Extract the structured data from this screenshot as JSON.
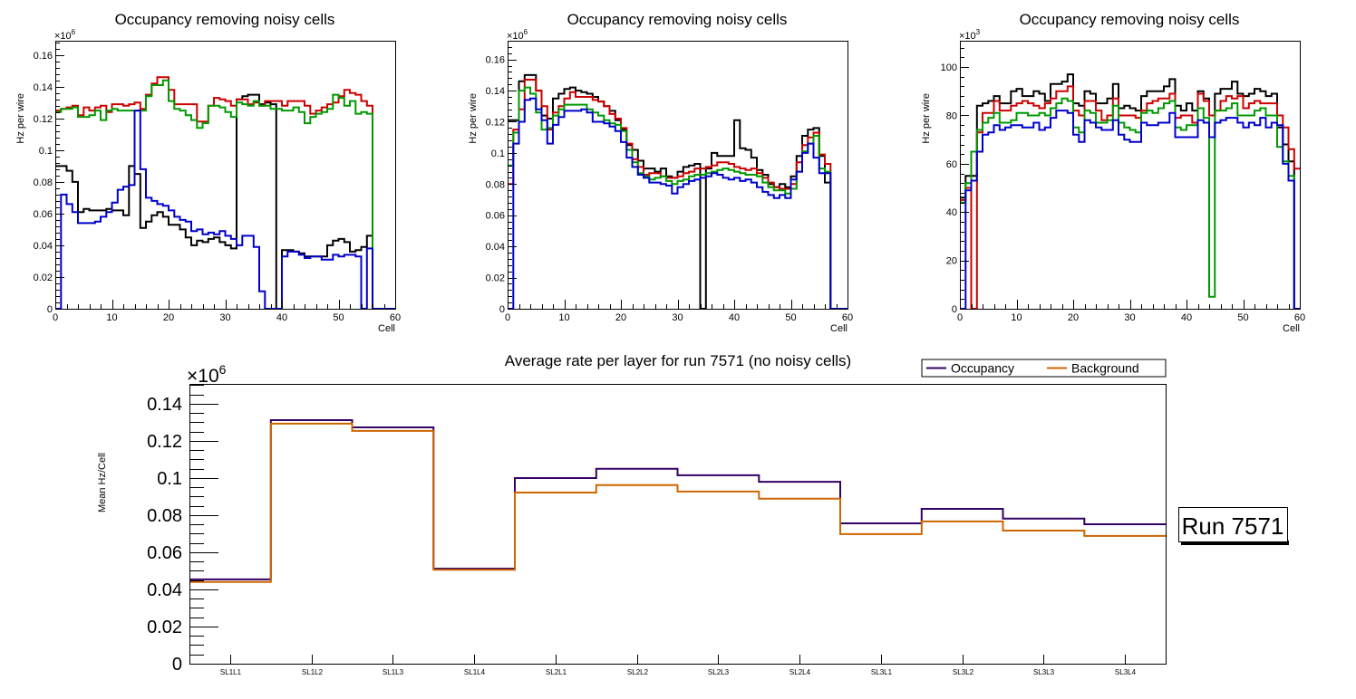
{
  "chart_data": [
    {
      "type": "line",
      "style": "step-histogram",
      "title": "Occupancy removing noisy cells",
      "xlabel": "Cell",
      "ylabel": "Hz per wire",
      "y_multiplier_label": "×10",
      "y_multiplier_exp": "6",
      "xlim": [
        0,
        60
      ],
      "ylim": [
        0,
        0.169
      ],
      "x_ticks": [
        "0",
        "10",
        "20",
        "30",
        "40",
        "50",
        "60"
      ],
      "y_ticks": [
        "0",
        "0.02",
        "0.04",
        "0.06",
        "0.08",
        "0.1",
        "0.12",
        "0.14",
        "0.16"
      ],
      "y_tick_values": [
        0,
        0.02,
        0.04,
        0.06,
        0.08,
        0.1,
        0.12,
        0.14,
        0.16
      ],
      "series": [
        {
          "name": "black",
          "color": "#000000",
          "values": [
            0.09,
            0.09,
            0.087,
            0.08,
            0.061,
            0.063,
            0.062,
            0.062,
            0.062,
            0.063,
            0.062,
            0.062,
            0.059,
            0.09,
            0.085,
            0.051,
            0.055,
            0.059,
            0.061,
            0.058,
            0.053,
            0.053,
            0.05,
            0.045,
            0.04,
            0.043,
            0.042,
            0.044,
            0.045,
            0.042,
            0.04,
            0.038,
            0.132,
            0.134,
            0.135,
            0.135,
            0.129,
            0.13,
            0.129,
            0,
            0.037,
            0.037,
            0.036,
            0.035,
            0.033,
            0.033,
            0.033,
            0.033,
            0.04,
            0.043,
            0.044,
            0.042,
            0.036,
            0.037,
            0.039,
            0.046,
            0,
            0,
            0,
            0
          ]
        },
        {
          "name": "red",
          "color": "#cc0000",
          "values": [
            0.125,
            0.126,
            0.127,
            0.128,
            0.122,
            0.127,
            0.125,
            0.127,
            0.128,
            0.124,
            0.129,
            0.129,
            0.128,
            0.129,
            0.13,
            0.126,
            0.135,
            0.142,
            0.146,
            0.146,
            0.138,
            0.129,
            0.129,
            0.129,
            0.129,
            0.118,
            0.118,
            0.128,
            0.133,
            0.132,
            0.131,
            0.128,
            0.132,
            0.132,
            0.129,
            0.13,
            0.128,
            0.131,
            0.131,
            0.131,
            0.128,
            0.131,
            0.131,
            0.131,
            0.128,
            0.123,
            0.125,
            0.127,
            0.129,
            0.13,
            0.134,
            0.138,
            0.136,
            0.135,
            0.131,
            0.128,
            0,
            0,
            0,
            0
          ]
        },
        {
          "name": "green",
          "color": "#009900",
          "values": [
            0.124,
            0.126,
            0.126,
            0.127,
            0.121,
            0.121,
            0.122,
            0.125,
            0.119,
            0.125,
            0.126,
            0.125,
            0.125,
            0.125,
            0.125,
            0.125,
            0.134,
            0.141,
            0.141,
            0.144,
            0.131,
            0.126,
            0.125,
            0.122,
            0.119,
            0.114,
            0.117,
            0.128,
            0.128,
            0.127,
            0.124,
            0.121,
            0.13,
            0.129,
            0.128,
            0.131,
            0.128,
            0.128,
            0.126,
            0.126,
            0.125,
            0.125,
            0.127,
            0.124,
            0.117,
            0.121,
            0.123,
            0.124,
            0.126,
            0.135,
            0.133,
            0.128,
            0.131,
            0.123,
            0.124,
            0.123,
            0,
            0,
            0,
            0
          ]
        },
        {
          "name": "blue",
          "color": "#0000cc",
          "values": [
            0,
            0.072,
            0.066,
            0.061,
            0.054,
            0.054,
            0.054,
            0.055,
            0.058,
            0.061,
            0.067,
            0.075,
            0.077,
            0.078,
            0.125,
            0.088,
            0.07,
            0.068,
            0.066,
            0.065,
            0.062,
            0.058,
            0.056,
            0.055,
            0.049,
            0.05,
            0.047,
            0.048,
            0.047,
            0.049,
            0.046,
            0.044,
            0.04,
            0.046,
            0.046,
            0.039,
            0.011,
            0,
            0,
            0,
            0.033,
            0.036,
            0.036,
            0.034,
            0.032,
            0.033,
            0.033,
            0.031,
            0.031,
            0.034,
            0.033,
            0.034,
            0.034,
            0.033,
            0,
            0.038,
            0,
            0,
            0,
            0
          ]
        }
      ]
    },
    {
      "type": "line",
      "style": "step-histogram",
      "title": "Occupancy removing noisy cells",
      "xlabel": "Cell",
      "ylabel": "Hz per wire",
      "y_multiplier_label": "×10",
      "y_multiplier_exp": "6",
      "xlim": [
        0,
        60
      ],
      "ylim": [
        0,
        0.172
      ],
      "x_ticks": [
        "0",
        "10",
        "20",
        "30",
        "40",
        "50",
        "60"
      ],
      "y_ticks": [
        "0",
        "0.02",
        "0.04",
        "0.06",
        "0.08",
        "0.1",
        "0.12",
        "0.14",
        "0.16"
      ],
      "y_tick_values": [
        0,
        0.02,
        0.04,
        0.06,
        0.08,
        0.1,
        0.12,
        0.14,
        0.16
      ],
      "series": [
        {
          "name": "black",
          "color": "#000000",
          "values": [
            0.121,
            0.121,
            0.146,
            0.15,
            0.15,
            0.14,
            0.124,
            0.122,
            0.135,
            0.138,
            0.141,
            0.142,
            0.14,
            0.139,
            0.138,
            0.136,
            0.133,
            0.13,
            0.127,
            0.121,
            0.115,
            0.105,
            0.102,
            0.095,
            0.09,
            0.09,
            0.088,
            0.09,
            0.085,
            0.084,
            0.088,
            0.091,
            0.092,
            0.093,
            0,
            0.09,
            0.1,
            0.098,
            0.098,
            0.098,
            0.121,
            0.103,
            0.102,
            0.097,
            0.089,
            0.086,
            0.08,
            0.078,
            0.08,
            0.078,
            0.085,
            0.098,
            0.111,
            0.115,
            0.116,
            0.098,
            0.081,
            0,
            0,
            0
          ]
        },
        {
          "name": "red",
          "color": "#cc0000",
          "values": [
            0.08,
            0.115,
            0.128,
            0.147,
            0.147,
            0.14,
            0.13,
            0.115,
            0.126,
            0.13,
            0.135,
            0.139,
            0.136,
            0.136,
            0.136,
            0.134,
            0.133,
            0.13,
            0.125,
            0.122,
            0.116,
            0.106,
            0.096,
            0.091,
            0.086,
            0.087,
            0.087,
            0.085,
            0.084,
            0.084,
            0.085,
            0.087,
            0.088,
            0.09,
            0.09,
            0.091,
            0.092,
            0.094,
            0.094,
            0.093,
            0.091,
            0.09,
            0.089,
            0.09,
            0.087,
            0.084,
            0.081,
            0.078,
            0.077,
            0.077,
            0.08,
            0.094,
            0.105,
            0.11,
            0.113,
            0.099,
            0.093,
            0,
            0,
            0
          ]
        },
        {
          "name": "green",
          "color": "#009900",
          "values": [
            0.092,
            0.113,
            0.14,
            0.142,
            0.138,
            0.126,
            0.115,
            0.116,
            0.124,
            0.128,
            0.131,
            0.131,
            0.131,
            0.131,
            0.128,
            0.126,
            0.124,
            0.121,
            0.119,
            0.118,
            0.114,
            0.102,
            0.094,
            0.087,
            0.085,
            0.083,
            0.084,
            0.085,
            0.082,
            0.08,
            0.082,
            0.083,
            0.085,
            0.086,
            0.086,
            0.087,
            0.088,
            0.089,
            0.09,
            0.089,
            0.088,
            0.087,
            0.086,
            0.086,
            0.085,
            0.081,
            0.078,
            0.076,
            0.076,
            0.074,
            0.077,
            0.088,
            0.101,
            0.106,
            0.111,
            0.09,
            0.088,
            0,
            0,
            0
          ]
        },
        {
          "name": "blue",
          "color": "#0000cc",
          "values": [
            0,
            0.106,
            0.12,
            0.134,
            0.135,
            0.128,
            0.121,
            0.106,
            0.118,
            0.123,
            0.127,
            0.127,
            0.127,
            0.128,
            0.126,
            0.12,
            0.12,
            0.119,
            0.117,
            0.114,
            0.107,
            0.097,
            0.091,
            0.086,
            0.084,
            0.081,
            0.081,
            0.08,
            0.079,
            0.074,
            0.078,
            0.08,
            0.082,
            0.083,
            0.084,
            0.085,
            0.087,
            0.086,
            0.084,
            0.083,
            0.084,
            0.082,
            0.083,
            0.081,
            0.078,
            0.075,
            0.073,
            0.071,
            0.073,
            0.071,
            0.083,
            0.088,
            0.1,
            0.106,
            0.097,
            0.087,
            0.087,
            0,
            0,
            0
          ]
        }
      ]
    },
    {
      "type": "line",
      "style": "step-histogram",
      "title": "Occupancy removing noisy cells",
      "xlabel": "Cell",
      "ylabel": "Hz per wire",
      "y_multiplier_label": "×10",
      "y_multiplier_exp": "3",
      "xlim": [
        0,
        60
      ],
      "ylim": [
        0,
        110.9
      ],
      "x_ticks": [
        "0",
        "10",
        "20",
        "30",
        "40",
        "50",
        "60"
      ],
      "y_ticks": [
        "0",
        "20",
        "40",
        "60",
        "80",
        "100"
      ],
      "y_tick_values": [
        0,
        20,
        40,
        60,
        80,
        100
      ],
      "series": [
        {
          "name": "black",
          "color": "#000000",
          "values": [
            46,
            55,
            55,
            84,
            85,
            86,
            88,
            85,
            85,
            90,
            91,
            88,
            88,
            90,
            89,
            86,
            93,
            93,
            94,
            97,
            85,
            84,
            90,
            89,
            85,
            85,
            87,
            93,
            83,
            84,
            83,
            82,
            88,
            90,
            90,
            90,
            92,
            95,
            84,
            82,
            85,
            82,
            90,
            87,
            80,
            89,
            91,
            91,
            94,
            89,
            88,
            89,
            91,
            90,
            88,
            89,
            75,
            68,
            61,
            0
          ]
        },
        {
          "name": "red",
          "color": "#cc0000",
          "values": [
            45,
            50,
            0,
            73,
            81,
            81,
            86,
            82,
            82,
            84,
            85,
            86,
            85,
            84,
            83,
            85,
            87,
            90,
            90,
            92,
            82,
            80,
            86,
            86,
            82,
            78,
            80,
            87,
            80,
            80,
            80,
            79,
            82,
            85,
            86,
            87,
            87,
            89,
            79,
            80,
            80,
            77,
            89,
            86,
            80,
            82,
            86,
            88,
            87,
            88,
            83,
            85,
            86,
            85,
            85,
            85,
            80,
            75,
            66,
            58
          ]
        },
        {
          "name": "green",
          "color": "#009900",
          "values": [
            44,
            52,
            65,
            74,
            77,
            79,
            81,
            77,
            77,
            78,
            81,
            81,
            80,
            80,
            81,
            80,
            83,
            85,
            87,
            86,
            75,
            73,
            82,
            81,
            77,
            77,
            78,
            84,
            77,
            75,
            74,
            73,
            81,
            82,
            81,
            83,
            85,
            86,
            75,
            74,
            76,
            76,
            83,
            79,
            5,
            82,
            82,
            83,
            85,
            80,
            80,
            80,
            82,
            83,
            80,
            80,
            67,
            61,
            55,
            0
          ]
        },
        {
          "name": "blue",
          "color": "#0000cc",
          "values": [
            0,
            49,
            53,
            65,
            72,
            73,
            76,
            74,
            75,
            76,
            76,
            75,
            75,
            77,
            74,
            75,
            79,
            82,
            82,
            81,
            72,
            69,
            78,
            77,
            75,
            74,
            74,
            78,
            72,
            70,
            69,
            69,
            77,
            76,
            76,
            77,
            77,
            81,
            71,
            71,
            71,
            71,
            78,
            77,
            71,
            77,
            78,
            79,
            79,
            77,
            75,
            77,
            76,
            79,
            75,
            77,
            76,
            60,
            53,
            0
          ]
        }
      ]
    },
    {
      "type": "line",
      "style": "step-histogram",
      "title": "Average rate per layer for run 7571 (no noisy cells)",
      "xlabel": "",
      "ylabel": "Mean Hz/Cell",
      "y_multiplier_label": "×10",
      "y_multiplier_exp": "6",
      "ylim": [
        0,
        0.1507
      ],
      "categories": [
        "SL1L1",
        "SL1L2",
        "SL1L3",
        "SL1L4",
        "SL2L1",
        "SL2L2",
        "SL2L3",
        "SL2L4",
        "SL3L1",
        "SL3L2",
        "SL3L3",
        "SL3L4"
      ],
      "y_ticks": [
        "0",
        "0.02",
        "0.04",
        "0.06",
        "0.08",
        "0.1",
        "0.12",
        "0.14"
      ],
      "y_tick_values": [
        0,
        0.02,
        0.04,
        0.06,
        0.08,
        0.1,
        0.12,
        0.14
      ],
      "legend": {
        "position": "top-right",
        "entries": [
          "Occupancy",
          "Background"
        ]
      },
      "annotation": "Run 7571",
      "series": [
        {
          "name": "Occupancy",
          "color": "#330066",
          "values": [
            0.0454,
            0.1312,
            0.1273,
            0.0512,
            0.1,
            0.105,
            0.1015,
            0.098,
            0.0756,
            0.0834,
            0.0782,
            0.0751
          ]
        },
        {
          "name": "Background",
          "color": "#cc6600",
          "values": [
            0.044,
            0.1293,
            0.1254,
            0.0506,
            0.0922,
            0.0962,
            0.0927,
            0.0889,
            0.0698,
            0.0766,
            0.0717,
            0.0688
          ]
        }
      ]
    }
  ]
}
